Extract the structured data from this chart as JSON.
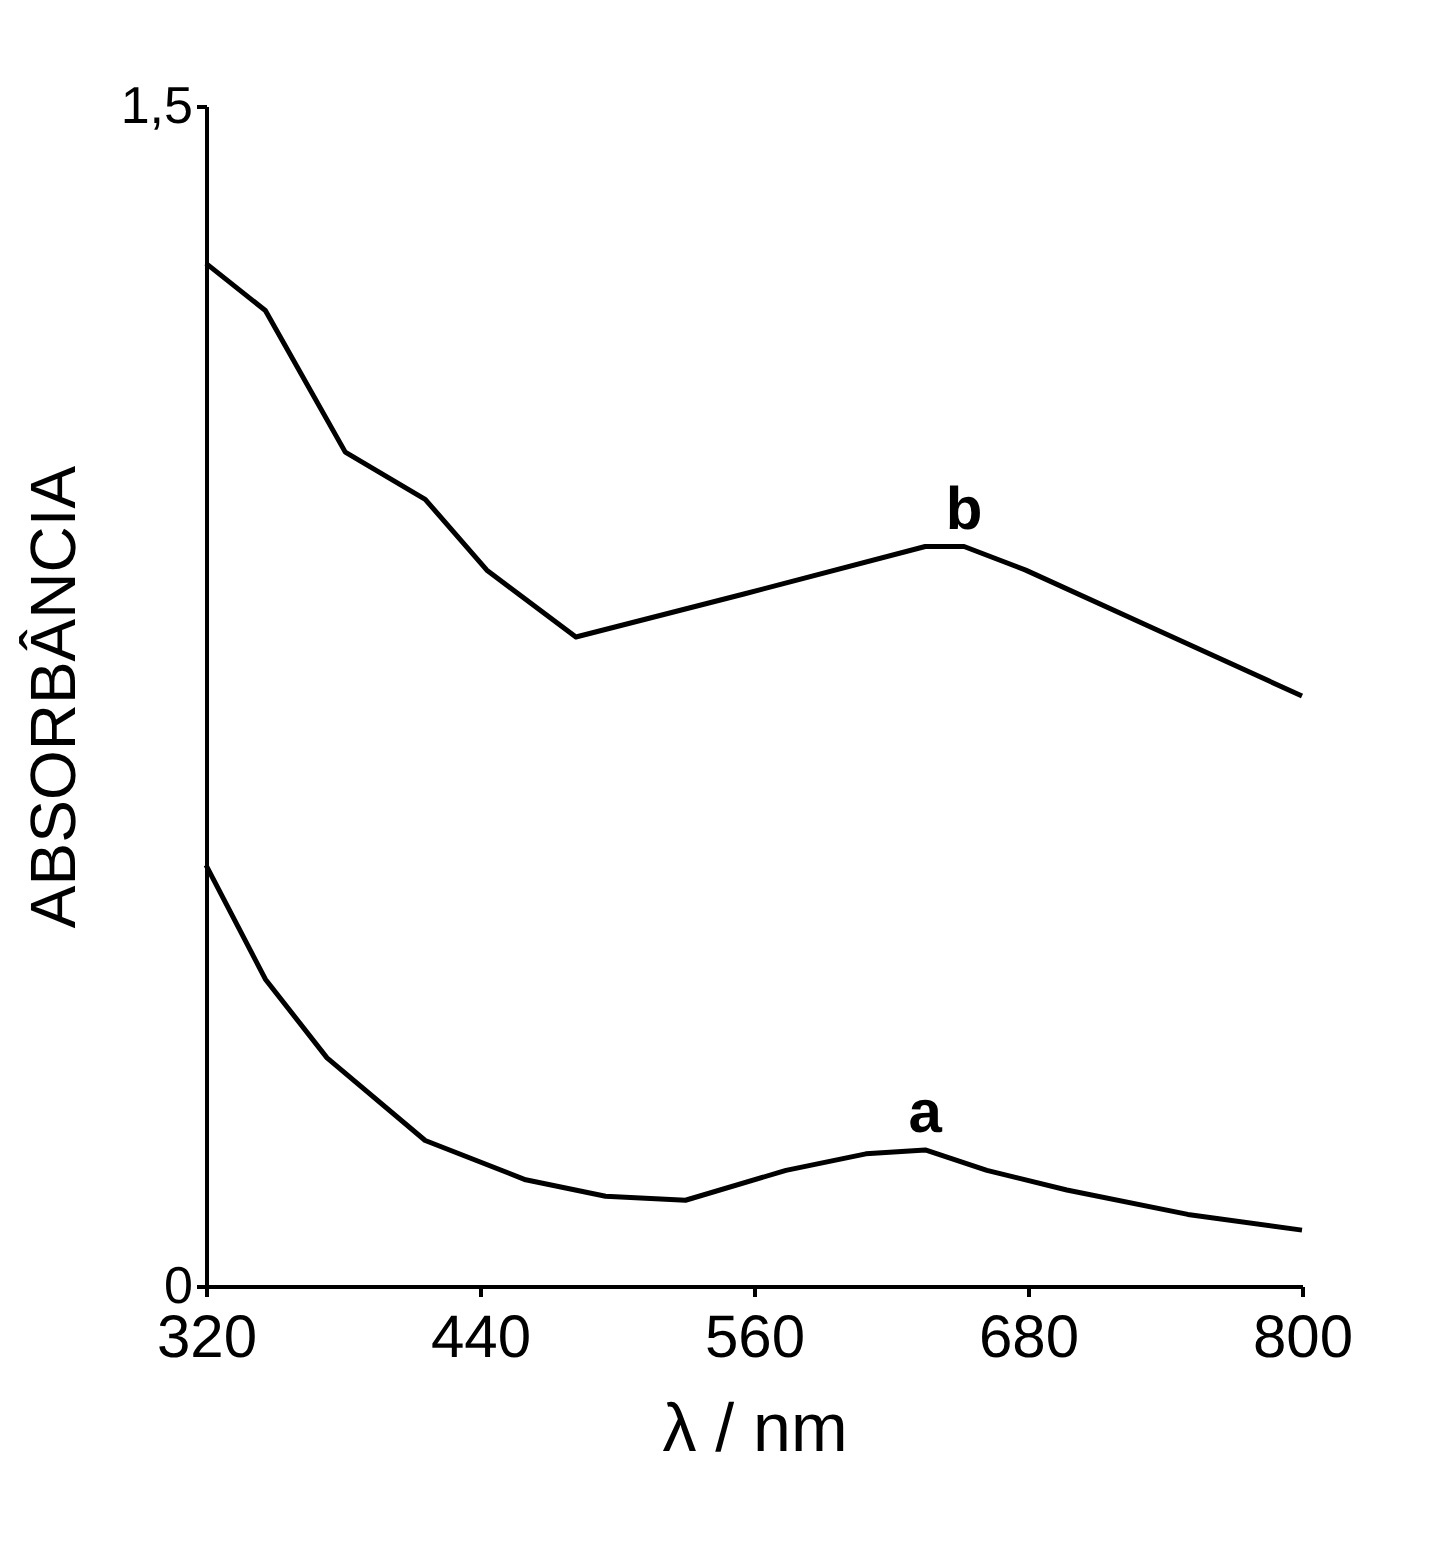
{
  "chart_data": {
    "type": "line",
    "xlabel": "λ / nm",
    "ylabel": "ABSORBÂNCIA",
    "xlim": [
      320,
      800
    ],
    "ylim": [
      0,
      1.5
    ],
    "xticks": [
      320,
      440,
      560,
      680,
      800
    ],
    "yticks": [
      0,
      {
        "value": 1.5,
        "label": "1,5"
      }
    ],
    "grid": false,
    "legend": false,
    "marker": "none",
    "line_style": "solid",
    "series": [
      {
        "name": "a",
        "color": "#000000",
        "x": [
          320,
          346,
          373,
          416,
          460,
          495,
          530,
          574,
          609,
          635,
          662,
          697,
          750,
          800
        ],
        "values": [
          0.535,
          0.39,
          0.29,
          0.185,
          0.135,
          0.114,
          0.109,
          0.147,
          0.168,
          0.173,
          0.147,
          0.122,
          0.091,
          0.071
        ]
      },
      {
        "name": "b",
        "color": "#000000",
        "x": [
          320,
          346,
          381,
          416,
          443,
          482,
          556,
          635,
          652,
          679,
          732,
          800
        ],
        "values": [
          1.3,
          1.24,
          1.06,
          1.0,
          0.91,
          0.825,
          0.88,
          0.94,
          0.94,
          0.91,
          0.84,
          0.75
        ]
      }
    ]
  }
}
